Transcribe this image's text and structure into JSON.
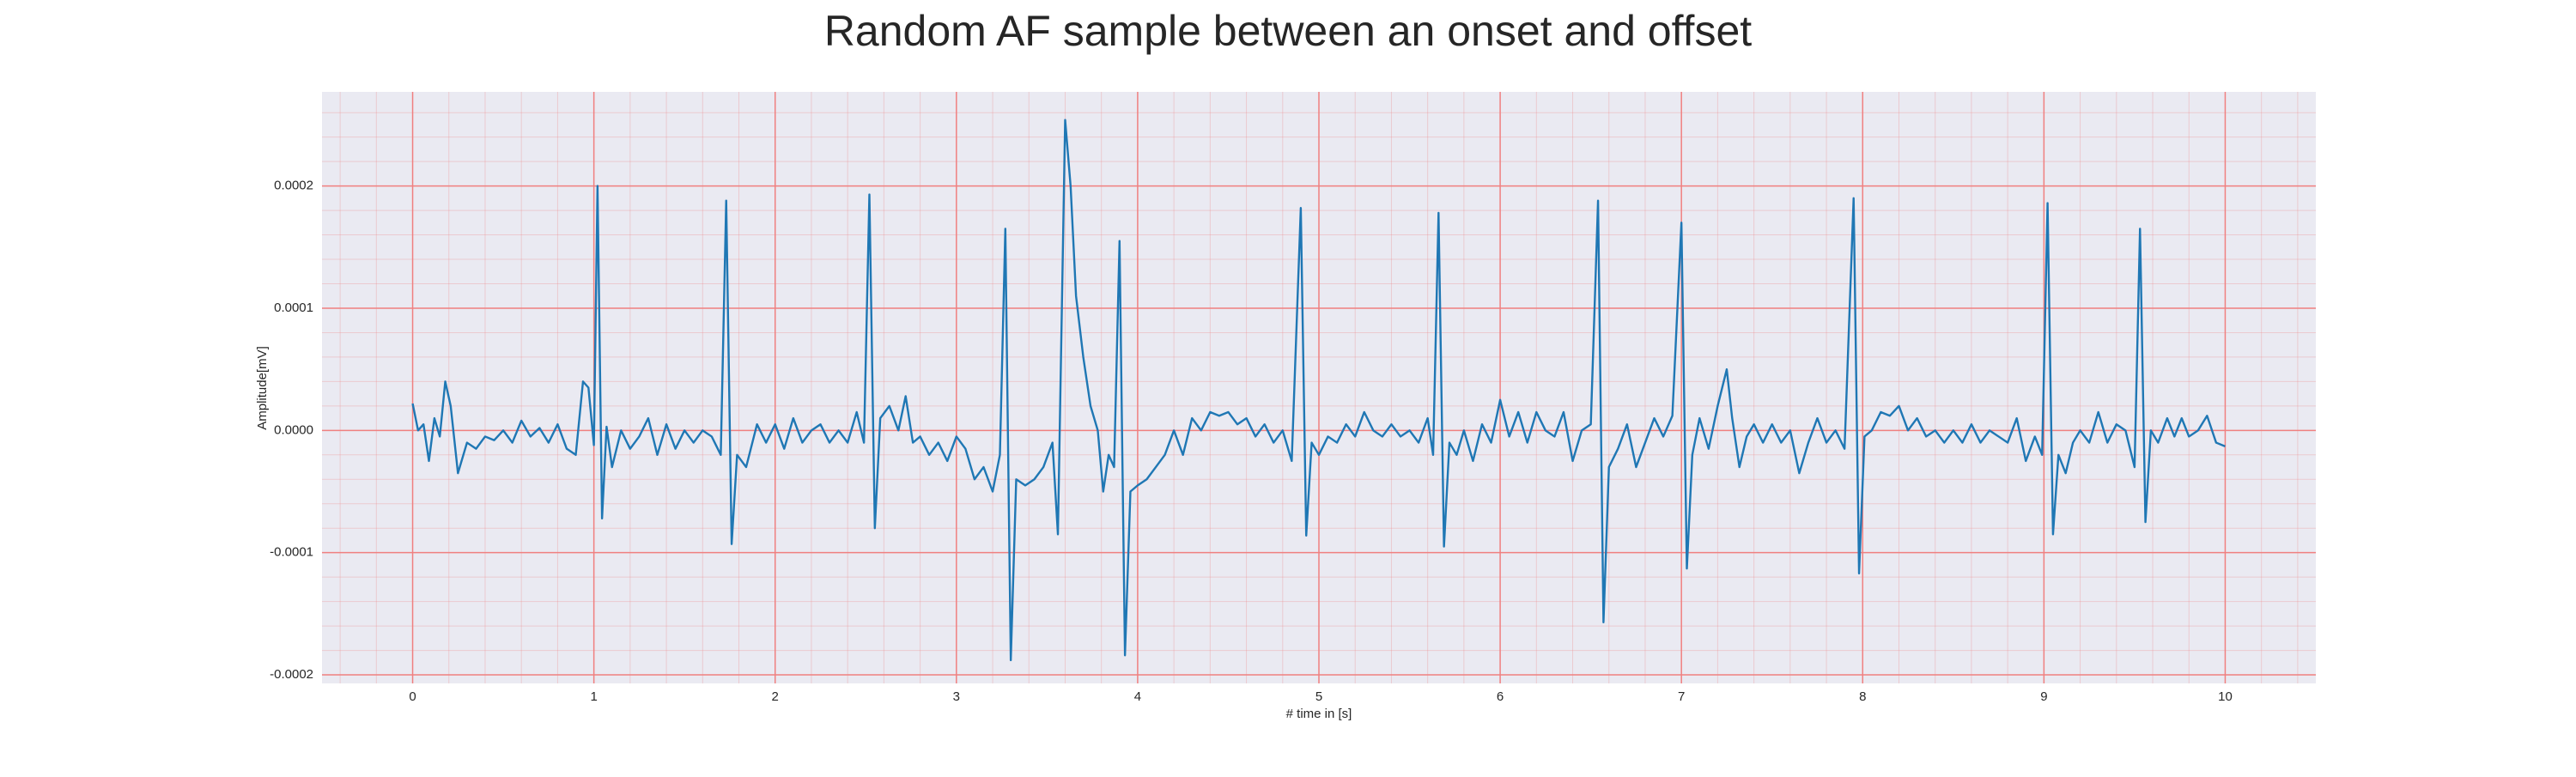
{
  "chart_data": {
    "type": "line",
    "title": "Random AF sample between an onset and offset",
    "x_label": "# time in [s]",
    "y_label": "Amplitude[mV]",
    "color": "#1f77b4",
    "grid": true,
    "grid_color": "#f08080",
    "minor_grid": true,
    "xlim": [
      -0.5,
      10.5
    ],
    "ylim": [
      -0.000207,
      0.000277
    ],
    "xticks": [
      0,
      1,
      2,
      3,
      4,
      5,
      6,
      7,
      8,
      9,
      10
    ],
    "yticks": [
      {
        "value": -0.0002,
        "label": "-0.0002"
      },
      {
        "value": -0.0001,
        "label": "-0.0001"
      },
      {
        "value": 0,
        "label": "0.0000"
      },
      {
        "value": 0.0001,
        "label": "0.0001"
      },
      {
        "value": 0.0002,
        "label": "0.0002"
      }
    ],
    "x": [
      0.0,
      0.03,
      0.06,
      0.09,
      0.12,
      0.15,
      0.18,
      0.21,
      0.25,
      0.3,
      0.35,
      0.4,
      0.45,
      0.5,
      0.55,
      0.6,
      0.65,
      0.7,
      0.75,
      0.8,
      0.85,
      0.9,
      0.94,
      0.97,
      1.0,
      1.02,
      1.045,
      1.07,
      1.1,
      1.15,
      1.2,
      1.25,
      1.3,
      1.35,
      1.4,
      1.45,
      1.5,
      1.55,
      1.6,
      1.65,
      1.7,
      1.73,
      1.76,
      1.79,
      1.84,
      1.9,
      1.95,
      2.0,
      2.05,
      2.1,
      2.15,
      2.2,
      2.25,
      2.3,
      2.35,
      2.4,
      2.45,
      2.49,
      2.52,
      2.55,
      2.58,
      2.63,
      2.68,
      2.72,
      2.76,
      2.8,
      2.85,
      2.9,
      2.95,
      3.0,
      3.05,
      3.1,
      3.15,
      3.2,
      3.24,
      3.27,
      3.3,
      3.33,
      3.38,
      3.43,
      3.48,
      3.53,
      3.56,
      3.6,
      3.63,
      3.66,
      3.7,
      3.74,
      3.78,
      3.81,
      3.84,
      3.87,
      3.9,
      3.93,
      3.96,
      4.0,
      4.05,
      4.1,
      4.15,
      4.2,
      4.25,
      4.3,
      4.35,
      4.4,
      4.45,
      4.5,
      4.55,
      4.6,
      4.65,
      4.7,
      4.75,
      4.8,
      4.85,
      4.9,
      4.93,
      4.96,
      5.0,
      5.05,
      5.1,
      5.15,
      5.2,
      5.25,
      5.3,
      5.35,
      5.4,
      5.45,
      5.5,
      5.55,
      5.6,
      5.63,
      5.66,
      5.69,
      5.72,
      5.76,
      5.8,
      5.85,
      5.9,
      5.95,
      6.0,
      6.05,
      6.1,
      6.15,
      6.2,
      6.25,
      6.3,
      6.35,
      6.4,
      6.45,
      6.5,
      6.54,
      6.57,
      6.6,
      6.65,
      6.7,
      6.75,
      6.8,
      6.85,
      6.9,
      6.95,
      7.0,
      7.03,
      7.06,
      7.1,
      7.15,
      7.2,
      7.25,
      7.28,
      7.32,
      7.36,
      7.4,
      7.45,
      7.5,
      7.55,
      7.6,
      7.65,
      7.7,
      7.75,
      7.8,
      7.85,
      7.9,
      7.95,
      7.98,
      8.01,
      8.05,
      8.1,
      8.15,
      8.2,
      8.25,
      8.3,
      8.35,
      8.4,
      8.45,
      8.5,
      8.55,
      8.6,
      8.65,
      8.7,
      8.75,
      8.8,
      8.85,
      8.9,
      8.95,
      8.99,
      9.02,
      9.05,
      9.08,
      9.12,
      9.16,
      9.2,
      9.25,
      9.3,
      9.35,
      9.4,
      9.45,
      9.5,
      9.53,
      9.56,
      9.59,
      9.63,
      9.68,
      9.72,
      9.76,
      9.8,
      9.85,
      9.9,
      9.95,
      10.0
    ],
    "values": [
      2.2e-05,
      0.0,
      5e-06,
      -2.5e-05,
      1e-05,
      -5e-06,
      4e-05,
      2e-05,
      -3.5e-05,
      -1e-05,
      -1.5e-05,
      -5e-06,
      -8e-06,
      0.0,
      -1e-05,
      8e-06,
      -5e-06,
      2e-06,
      -1e-05,
      5e-06,
      -1.5e-05,
      -2e-05,
      4e-05,
      3.5e-05,
      -1.2e-05,
      0.0002,
      -7.2e-05,
      3e-06,
      -3e-05,
      0.0,
      -1.5e-05,
      -5e-06,
      1e-05,
      -2e-05,
      5e-06,
      -1.5e-05,
      0.0,
      -1e-05,
      0.0,
      -5e-06,
      -2e-05,
      0.000188,
      -9.3e-05,
      -2e-05,
      -3e-05,
      5e-06,
      -1e-05,
      5e-06,
      -1.5e-05,
      1e-05,
      -1e-05,
      0.0,
      5e-06,
      -1e-05,
      0.0,
      -1e-05,
      1.5e-05,
      -1e-05,
      0.000193,
      -8e-05,
      1e-05,
      2e-05,
      0.0,
      2.8e-05,
      -1e-05,
      -5e-06,
      -2e-05,
      -1e-05,
      -2.5e-05,
      -5e-06,
      -1.5e-05,
      -4e-05,
      -3e-05,
      -5e-05,
      -2e-05,
      0.000165,
      -0.000188,
      -4e-05,
      -4.5e-05,
      -4e-05,
      -3e-05,
      -1e-05,
      -8.5e-05,
      0.000254,
      0.0002,
      0.00011,
      6e-05,
      2e-05,
      0.0,
      -5e-05,
      -2e-05,
      -3e-05,
      0.000155,
      -0.000184,
      -5e-05,
      -4.5e-05,
      -4e-05,
      -3e-05,
      -2e-05,
      0.0,
      -2e-05,
      1e-05,
      0.0,
      1.5e-05,
      1.2e-05,
      1.5e-05,
      5e-06,
      1e-05,
      -5e-06,
      5e-06,
      -1e-05,
      0.0,
      -2.5e-05,
      0.000182,
      -8.6e-05,
      -1e-05,
      -2e-05,
      -5e-06,
      -1e-05,
      5e-06,
      -5e-06,
      1.5e-05,
      0.0,
      -5e-06,
      5e-06,
      -5e-06,
      0.0,
      -1e-05,
      1e-05,
      -2e-05,
      0.000178,
      -9.5e-05,
      -1e-05,
      -2e-05,
      0.0,
      -2.5e-05,
      5e-06,
      -1e-05,
      2.5e-05,
      -5e-06,
      1.5e-05,
      -1e-05,
      1.5e-05,
      0.0,
      -5e-06,
      1.5e-05,
      -2.5e-05,
      0.0,
      5e-06,
      0.000188,
      -0.000157,
      -3e-05,
      -1.5e-05,
      5e-06,
      -3e-05,
      -1e-05,
      1e-05,
      -5e-06,
      1.2e-05,
      0.00017,
      -0.000113,
      -2e-05,
      1e-05,
      -1.5e-05,
      2e-05,
      5e-05,
      1e-05,
      -3e-05,
      -5e-06,
      5e-06,
      -1e-05,
      5e-06,
      -1e-05,
      0.0,
      -3.5e-05,
      -1e-05,
      1e-05,
      -1e-05,
      0.0,
      -1.5e-05,
      0.00019,
      -0.000117,
      -5e-06,
      0.0,
      1.5e-05,
      1.2e-05,
      2e-05,
      0.0,
      1e-05,
      -5e-06,
      0.0,
      -1e-05,
      0.0,
      -1e-05,
      5e-06,
      -1e-05,
      0.0,
      -5e-06,
      -1e-05,
      1e-05,
      -2.5e-05,
      -5e-06,
      -2e-05,
      0.000186,
      -8.5e-05,
      -2e-05,
      -3.5e-05,
      -1e-05,
      0.0,
      -1e-05,
      1.5e-05,
      -1e-05,
      5e-06,
      0.0,
      -3e-05,
      0.000165,
      -7.5e-05,
      0.0,
      -1e-05,
      1e-05,
      -5e-06,
      1e-05,
      -5e-06,
      0.0,
      1.2e-05,
      -1e-05,
      -1.3e-05
    ]
  }
}
